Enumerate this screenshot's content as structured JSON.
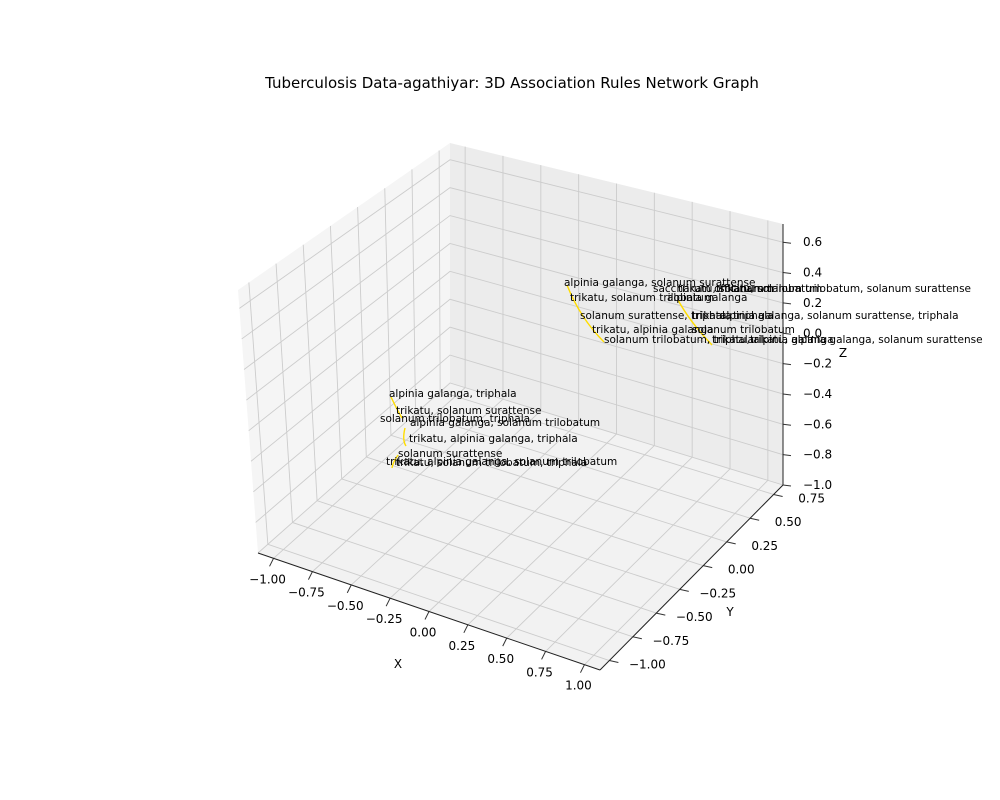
{
  "chart_data": {
    "type": "scatter",
    "title": "Tuberculosis Data-agathiyar:  3D Association Rules Network Graph",
    "xlabel": "X",
    "ylabel": "Y",
    "zlabel": "Z",
    "xlim": [
      -1.1,
      1.1
    ],
    "ylim": [
      -1.1,
      0.85
    ],
    "zlim": [
      -1.0,
      0.72
    ],
    "x_ticks": [
      "−1.00",
      "−0.75",
      "−0.50",
      "−0.25",
      "0.00",
      "0.25",
      "0.50",
      "0.75",
      "1.00"
    ],
    "y_ticks": [
      "−1.00",
      "−0.75",
      "−0.50",
      "−0.25",
      "0.00",
      "0.25",
      "0.50",
      "0.75"
    ],
    "z_ticks": [
      "−1.0",
      "−0.8",
      "−0.6",
      "−0.4",
      "−0.2",
      "0.0",
      "0.2",
      "0.4",
      "0.6"
    ],
    "grid": true,
    "edge_color": "#ffdd00",
    "node_labels": [
      "alpinia galanga, solanum surattense",
      "saccharum officinarum",
      "trikatu, solanum trilobatum",
      "trikatu, solanum trilobatum, solanum surattense",
      "trikatu, solanum trilobatum",
      "alpinia galanga",
      "solanum surattense, triphala",
      "trikatu, triphala",
      "alpinia galanga, solanum surattense, triphala",
      "trikatu, alpinia galanga",
      "solanum trilobatum",
      "solanum trilobatum, triphala",
      "trikatu, alpinia galanga",
      "trikatu, alpinia galanga, solanum surattense",
      "alpinia galanga, triphala",
      "trikatu, solanum surattense",
      "solanum trilobatum, triphala",
      "alpinia galanga, solanum trilobatum",
      "trikatu, alpinia galanga, triphala",
      "solanum surattense",
      "trikatu, alpinia galanga, solanum trilobatum",
      "trikatu, solanum trilobatum, triphala"
    ]
  }
}
